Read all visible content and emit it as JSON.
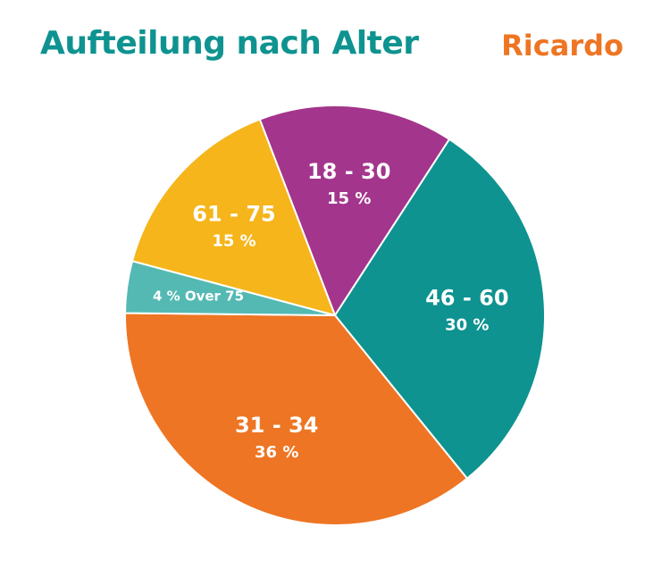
{
  "title": "Aufteilung nach Alter",
  "brand": "Ricardo",
  "chart_data": {
    "type": "pie",
    "title": "Aufteilung nach Alter",
    "slices": [
      {
        "category": "18 - 30",
        "value": 15,
        "label": "15 %",
        "color": "#a3358c"
      },
      {
        "category": "46 - 60",
        "value": 30,
        "label": "30 %",
        "color": "#0e9390"
      },
      {
        "category": "31 - 34",
        "value": 36,
        "label": "36 %",
        "color": "#ee7523"
      },
      {
        "category": "Over 75",
        "value": 4,
        "label": "4 %",
        "color": "#54b9b3"
      },
      {
        "category": "61 - 75",
        "value": 15,
        "label": "15 %",
        "color": "#f5b51b"
      }
    ],
    "legend": "none"
  }
}
